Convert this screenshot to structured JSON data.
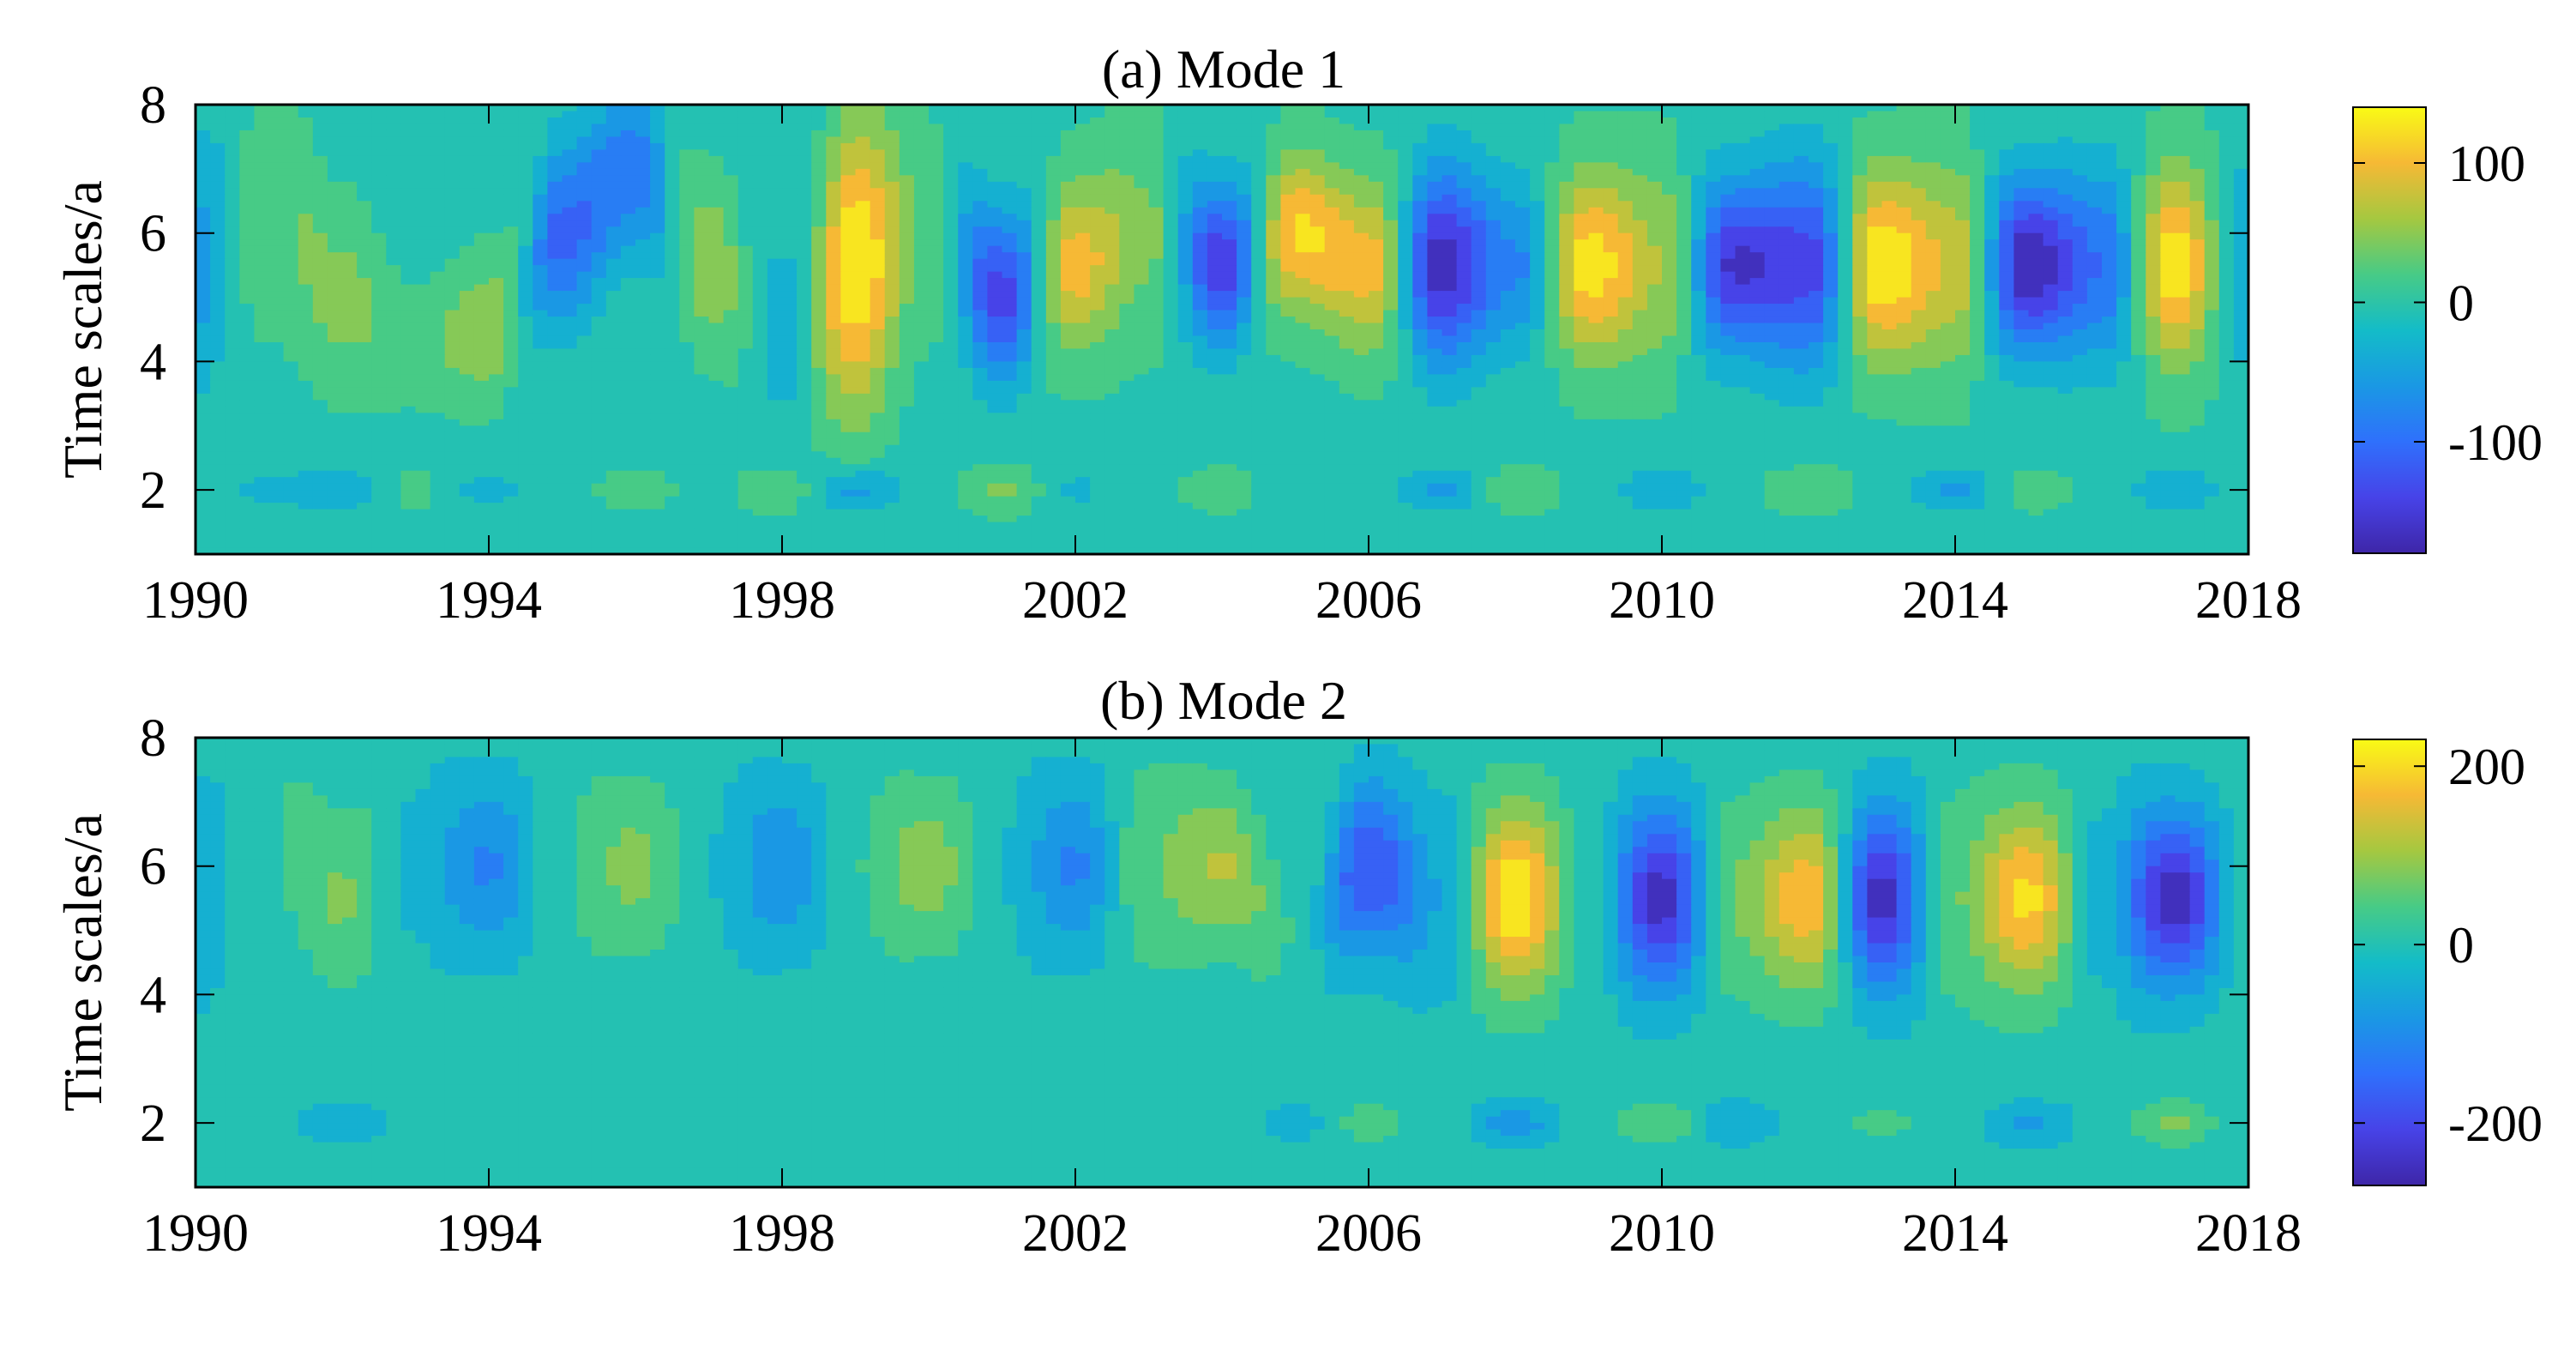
{
  "chart_data": [
    {
      "type": "heatmap",
      "subtype": "filled-contour",
      "title": "(a) Mode 1",
      "xlabel": "",
      "ylabel": "Time scales/a",
      "xlim": [
        1990,
        2018
      ],
      "ylim": [
        1,
        8
      ],
      "xticks": [
        "1990",
        "1994",
        "1998",
        "2002",
        "2006",
        "2010",
        "2014",
        "2018"
      ],
      "yticks": [
        "2",
        "4",
        "6",
        "8"
      ],
      "colorbar": {
        "min": -180,
        "max": 140,
        "ticks": [
          "100",
          "0",
          "-100"
        ]
      },
      "years": [
        1990,
        1991,
        1992,
        1993,
        1994,
        1995,
        1996,
        1997,
        1998,
        1999,
        2000,
        2001,
        2002,
        2003,
        2004,
        2005,
        2006,
        2007,
        2008,
        2009,
        2010,
        2011,
        2012,
        2013,
        2014,
        2015,
        2016,
        2017,
        2018
      ],
      "band_amplitude": [
        -60,
        30,
        45,
        20,
        60,
        -110,
        -90,
        60,
        -40,
        140,
        20,
        -140,
        100,
        40,
        -150,
        120,
        100,
        -170,
        -80,
        130,
        60,
        -160,
        -140,
        140,
        80,
        -180,
        -100,
        130,
        -50
      ],
      "band_center": [
        5.5,
        6.5,
        5.0,
        4.2,
        4.5,
        6.0,
        7.0,
        5.5,
        4.5,
        5.5,
        6.0,
        5.0,
        5.5,
        6.0,
        5.5,
        6.0,
        5.5,
        5.5,
        5.5,
        5.5,
        5.5,
        5.5,
        5.5,
        5.5,
        5.5,
        5.5,
        5.5,
        5.5,
        5.5
      ],
      "band_width": [
        2.0,
        1.8,
        1.3,
        0.9,
        1.0,
        1.4,
        1.4,
        1.2,
        1.4,
        2.2,
        1.8,
        1.3,
        1.3,
        1.6,
        1.2,
        1.2,
        1.3,
        1.5,
        1.3,
        1.4,
        1.6,
        1.3,
        1.6,
        1.4,
        1.6,
        1.3,
        1.5,
        1.5,
        1.6
      ],
      "low_amplitude": [
        10,
        -30,
        -40,
        15,
        -30,
        0,
        15,
        0,
        25,
        -60,
        -10,
        40,
        -25,
        0,
        20,
        -10,
        0,
        -50,
        25,
        0,
        -45,
        0,
        30,
        0,
        -55,
        20,
        0,
        -45,
        0
      ]
    },
    {
      "type": "heatmap",
      "subtype": "filled-contour",
      "title": "(b) Mode 2",
      "xlabel": "",
      "ylabel": "Time scales/a",
      "xlim": [
        1990,
        2018
      ],
      "ylim": [
        1,
        8
      ],
      "xticks": [
        "1990",
        "1994",
        "1998",
        "2002",
        "2006",
        "2010",
        "2014",
        "2018"
      ],
      "yticks": [
        "2",
        "4",
        "6",
        "8"
      ],
      "colorbar": {
        "min": -270,
        "max": 230,
        "ticks": [
          "200",
          "0",
          "-200"
        ]
      },
      "years": [
        1990,
        1991,
        1992,
        1993,
        1994,
        1995,
        1996,
        1997,
        1998,
        1999,
        2000,
        2001,
        2002,
        2003,
        2004,
        2005,
        2006,
        2007,
        2008,
        2009,
        2010,
        2011,
        2012,
        2013,
        2014,
        2015,
        2016,
        2017,
        2018
      ],
      "band_amplitude": [
        -60,
        20,
        70,
        -30,
        -110,
        20,
        80,
        -20,
        -100,
        20,
        90,
        -20,
        -110,
        60,
        110,
        20,
        -190,
        -60,
        230,
        0,
        -250,
        70,
        180,
        -250,
        60,
        200,
        -40,
        -260,
        0
      ],
      "band_center": [
        5.5,
        6.5,
        5.5,
        6.0,
        6.0,
        6.0,
        6.0,
        6.0,
        6.0,
        6.0,
        6.0,
        6.0,
        6.0,
        6.0,
        6.0,
        5.0,
        6.0,
        5.5,
        5.5,
        5.5,
        5.5,
        5.5,
        5.5,
        5.5,
        5.5,
        5.5,
        5.5,
        5.5,
        5.5
      ],
      "band_width": [
        1.8,
        1.8,
        1.3,
        1.8,
        1.3,
        1.8,
        1.2,
        1.8,
        1.3,
        1.8,
        1.2,
        1.8,
        1.3,
        1.6,
        1.2,
        1.2,
        1.3,
        1.6,
        1.4,
        1.6,
        1.4,
        1.5,
        1.4,
        1.4,
        1.6,
        1.4,
        1.6,
        1.3,
        1.4
      ],
      "low_amplitude": [
        0,
        0,
        -50,
        0,
        0,
        0,
        0,
        0,
        0,
        0,
        0,
        0,
        0,
        0,
        0,
        -40,
        40,
        0,
        -80,
        0,
        60,
        -60,
        0,
        30,
        0,
        -70,
        0,
        70,
        -20
      ]
    }
  ]
}
